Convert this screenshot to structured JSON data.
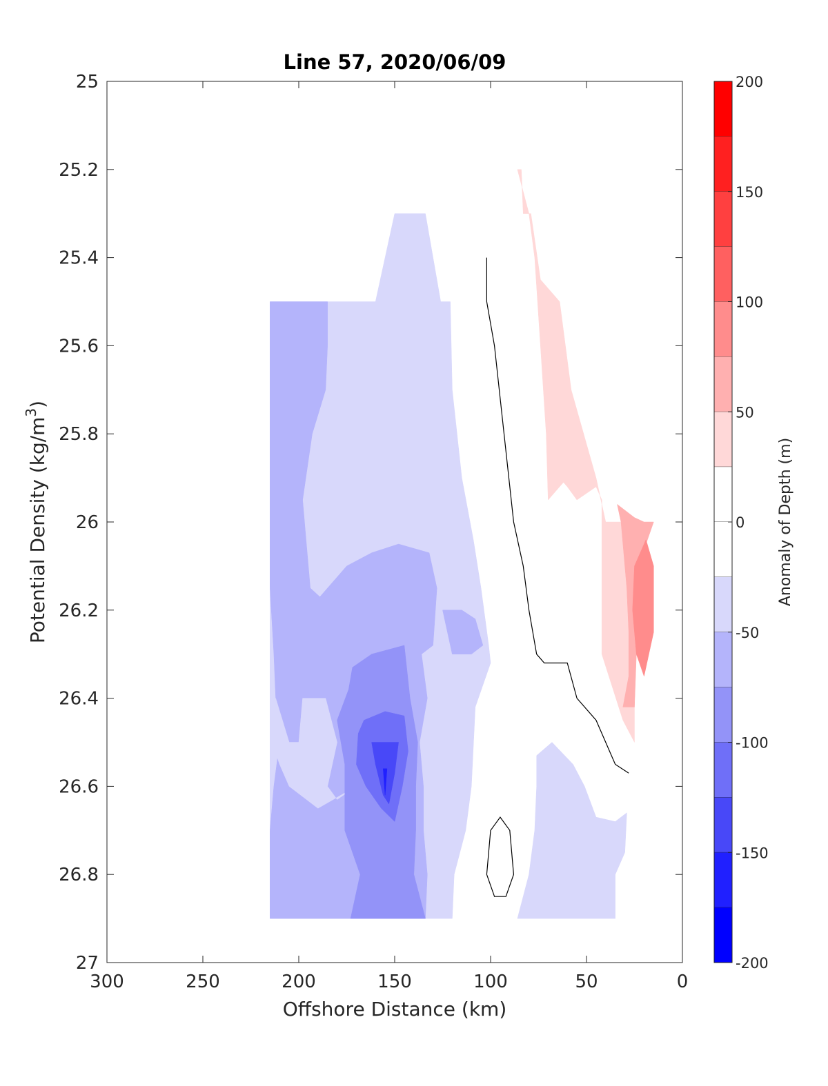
{
  "chart_data": {
    "type": "contour",
    "title": "Line 57, 2020/06/09",
    "xlabel": "Offshore Distance (km)",
    "ylabel": "Potential Density (kg/m",
    "ylabel_sup": "3",
    "ylabel_close": ")",
    "xlim": [
      300,
      0
    ],
    "ylim": [
      25,
      27
    ],
    "x_reversed": true,
    "y_reversed": true,
    "xticks": [
      300,
      250,
      200,
      150,
      100,
      50,
      0
    ],
    "yticks": [
      25,
      25.2,
      25.4,
      25.6,
      25.8,
      26,
      26.2,
      26.4,
      26.6,
      26.8,
      27
    ],
    "colorbar": {
      "label": "Anomaly of Depth (m)",
      "range": [
        -200,
        200
      ],
      "ticks": [
        200,
        150,
        100,
        50,
        0,
        -50,
        -100,
        -150,
        -200
      ],
      "levels": [
        {
          "min": 175,
          "max": 200,
          "color": "#ff0000"
        },
        {
          "min": 150,
          "max": 175,
          "color": "#ff2020"
        },
        {
          "min": 125,
          "max": 150,
          "color": "#ff4040"
        },
        {
          "min": 100,
          "max": 125,
          "color": "#ff6060"
        },
        {
          "min": 75,
          "max": 100,
          "color": "#ff8c8c"
        },
        {
          "min": 50,
          "max": 75,
          "color": "#ffb0b0"
        },
        {
          "min": 25,
          "max": 50,
          "color": "#ffd8d8"
        },
        {
          "min": 0,
          "max": 25,
          "color": "#ffffff"
        },
        {
          "min": -25,
          "max": 0,
          "color": "#ffffff"
        },
        {
          "min": -50,
          "max": -25,
          "color": "#d8d8fb"
        },
        {
          "min": -75,
          "max": -50,
          "color": "#b4b4fb"
        },
        {
          "min": -100,
          "max": -75,
          "color": "#9393f8"
        },
        {
          "min": -125,
          "max": -100,
          "color": "#6f6ff8"
        },
        {
          "min": -150,
          "max": -125,
          "color": "#4848f8"
        },
        {
          "min": -175,
          "max": -150,
          "color": "#2020ff"
        },
        {
          "min": -200,
          "max": -175,
          "color": "#0000ff"
        }
      ]
    },
    "regions": [
      {
        "level": -50,
        "color": "#d8d8fb",
        "points": [
          [
            215,
            25.5
          ],
          [
            193,
            25.5
          ],
          [
            185,
            25.5
          ],
          [
            175,
            25.5
          ],
          [
            160,
            25.5
          ],
          [
            150,
            25.3
          ],
          [
            134,
            25.3
          ],
          [
            126,
            25.5
          ],
          [
            121,
            25.5
          ],
          [
            120,
            25.7
          ],
          [
            115,
            25.9
          ],
          [
            109,
            26.04
          ],
          [
            105,
            26.15
          ],
          [
            101,
            26.28
          ],
          [
            100,
            26.32
          ],
          [
            108,
            26.42
          ],
          [
            110,
            26.6
          ],
          [
            113,
            26.7
          ],
          [
            119,
            26.8
          ],
          [
            120,
            26.9
          ],
          [
            215,
            26.9
          ]
        ]
      },
      {
        "level": -50,
        "color": "#d8d8fb",
        "points": [
          [
            76,
            26.53
          ],
          [
            68,
            26.5
          ],
          [
            57,
            26.55
          ],
          [
            51,
            26.6
          ],
          [
            45,
            26.67
          ],
          [
            35,
            26.68
          ],
          [
            29,
            26.66
          ],
          [
            30,
            26.75
          ],
          [
            35,
            26.8
          ],
          [
            35,
            26.9
          ],
          [
            86,
            26.9
          ],
          [
            80,
            26.8
          ],
          [
            77,
            26.7
          ],
          [
            76,
            26.6
          ]
        ]
      },
      {
        "level": -75,
        "color": "#b4b4fb",
        "points": [
          [
            215,
            25.5
          ],
          [
            193,
            25.5
          ],
          [
            185,
            25.5
          ],
          [
            185,
            25.6
          ],
          [
            186,
            25.7
          ],
          [
            193,
            25.8
          ],
          [
            198,
            25.95
          ],
          [
            196,
            26.05
          ],
          [
            194,
            26.15
          ],
          [
            189,
            26.17
          ],
          [
            175,
            26.1
          ],
          [
            162,
            26.07
          ],
          [
            148,
            26.05
          ],
          [
            132,
            26.07
          ],
          [
            128,
            26.15
          ],
          [
            130,
            26.28
          ],
          [
            136,
            26.3
          ],
          [
            133,
            26.4
          ],
          [
            137,
            26.5
          ],
          [
            135,
            26.6
          ],
          [
            135,
            26.7
          ],
          [
            133,
            26.8
          ],
          [
            134,
            26.9
          ],
          [
            215,
            26.9
          ],
          [
            215,
            26.7
          ],
          [
            213,
            26.6
          ],
          [
            210,
            26.5
          ],
          [
            212,
            26.4
          ],
          [
            213,
            26.3
          ],
          [
            215,
            26.15
          ],
          [
            215,
            26
          ]
        ]
      },
      {
        "level": -75,
        "color": "#b4b4fb",
        "points": [
          [
            125,
            26.2
          ],
          [
            120,
            26.3
          ],
          [
            110,
            26.3
          ],
          [
            104,
            26.28
          ],
          [
            108,
            26.22
          ],
          [
            115,
            26.2
          ]
        ]
      },
      {
        "level": -50,
        "color": "#d8d8fb",
        "points": [
          [
            212,
            26.4
          ],
          [
            205,
            26.5
          ],
          [
            200,
            26.5
          ],
          [
            198,
            26.4
          ],
          [
            186,
            26.4
          ],
          [
            180,
            26.5
          ],
          [
            185,
            26.6
          ],
          [
            180,
            26.63
          ],
          [
            170,
            26.6
          ],
          [
            190,
            26.65
          ],
          [
            205,
            26.6
          ],
          [
            210,
            26.55
          ],
          [
            214,
            26.5
          ]
        ]
      },
      {
        "level": -100,
        "color": "#9393f8",
        "points": [
          [
            172,
            26.33
          ],
          [
            162,
            26.3
          ],
          [
            145,
            26.28
          ],
          [
            142,
            26.4
          ],
          [
            138,
            26.5
          ],
          [
            139,
            26.6
          ],
          [
            139,
            26.7
          ],
          [
            140,
            26.8
          ],
          [
            134,
            26.9
          ],
          [
            173,
            26.9
          ],
          [
            168,
            26.8
          ],
          [
            176,
            26.7
          ],
          [
            176,
            26.55
          ],
          [
            180,
            26.45
          ],
          [
            174,
            26.38
          ]
        ]
      },
      {
        "level": -125,
        "color": "#6f6ff8",
        "points": [
          [
            166,
            26.45
          ],
          [
            155,
            26.43
          ],
          [
            145,
            26.44
          ],
          [
            143,
            26.52
          ],
          [
            146,
            26.6
          ],
          [
            150,
            26.68
          ],
          [
            157,
            26.65
          ],
          [
            165,
            26.6
          ],
          [
            170,
            26.55
          ],
          [
            169,
            26.48
          ]
        ]
      },
      {
        "level": -150,
        "color": "#4848f8",
        "points": [
          [
            162,
            26.5
          ],
          [
            148,
            26.5
          ],
          [
            150,
            26.57
          ],
          [
            153,
            26.64
          ],
          [
            156,
            26.62
          ],
          [
            160,
            26.55
          ]
        ]
      },
      {
        "level": -175,
        "color": "#2020ff",
        "points": [
          [
            156,
            26.56
          ],
          [
            154,
            26.56
          ],
          [
            155,
            26.62
          ]
        ]
      },
      {
        "level": 50,
        "color": "#ffd8d8",
        "points": [
          [
            86,
            25.2
          ],
          [
            84,
            25.2
          ],
          [
            83,
            25.3
          ],
          [
            79,
            25.3
          ],
          [
            74,
            25.45
          ],
          [
            64,
            25.5
          ],
          [
            58,
            25.7
          ],
          [
            45,
            25.9
          ],
          [
            40,
            26.0
          ],
          [
            30,
            26.0
          ],
          [
            25,
            26.05
          ],
          [
            25,
            26.5
          ],
          [
            31,
            26.45
          ],
          [
            42,
            26.3
          ],
          [
            42,
            26.05
          ],
          [
            42,
            25.95
          ],
          [
            45,
            25.92
          ],
          [
            55,
            25.95
          ],
          [
            60,
            25.92
          ],
          [
            62,
            25.91
          ],
          [
            70,
            25.95
          ],
          [
            71,
            25.8
          ],
          [
            74,
            25.6
          ],
          [
            77,
            25.4
          ],
          [
            80,
            25.3
          ]
        ]
      },
      {
        "level": 75,
        "color": "#ffb0b0",
        "points": [
          [
            34,
            25.96
          ],
          [
            32,
            26.0
          ],
          [
            29,
            26.15
          ],
          [
            28,
            26.25
          ],
          [
            28,
            26.35
          ],
          [
            31,
            26.42
          ],
          [
            25,
            26.42
          ],
          [
            24,
            26.3
          ],
          [
            19,
            26.05
          ],
          [
            15,
            26.0
          ],
          [
            20,
            26.0
          ],
          [
            25,
            25.99
          ]
        ]
      },
      {
        "level": 100,
        "color": "#ff8c8c",
        "points": [
          [
            19,
            26.04
          ],
          [
            25,
            26.1
          ],
          [
            26,
            26.2
          ],
          [
            24,
            26.3
          ],
          [
            20,
            26.35
          ],
          [
            15,
            26.25
          ],
          [
            15,
            26.1
          ]
        ]
      }
    ],
    "contour_lines": [
      {
        "level": 0,
        "points": [
          [
            102,
            25.4
          ],
          [
            102,
            25.5
          ],
          [
            98,
            25.6
          ],
          [
            93,
            25.8
          ],
          [
            88,
            26.0
          ],
          [
            83,
            26.1
          ],
          [
            80,
            26.2
          ],
          [
            76,
            26.3
          ],
          [
            72,
            26.32
          ],
          [
            60,
            26.32
          ],
          [
            55,
            26.4
          ],
          [
            45,
            26.45
          ],
          [
            40,
            26.5
          ],
          [
            35,
            26.55
          ],
          [
            28,
            26.57
          ]
        ]
      },
      {
        "level": 0,
        "points": [
          [
            95,
            26.67
          ],
          [
            90,
            26.7
          ],
          [
            88,
            26.8
          ],
          [
            92,
            26.85
          ],
          [
            98,
            26.85
          ],
          [
            102,
            26.8
          ],
          [
            100,
            26.7
          ]
        ]
      }
    ]
  }
}
